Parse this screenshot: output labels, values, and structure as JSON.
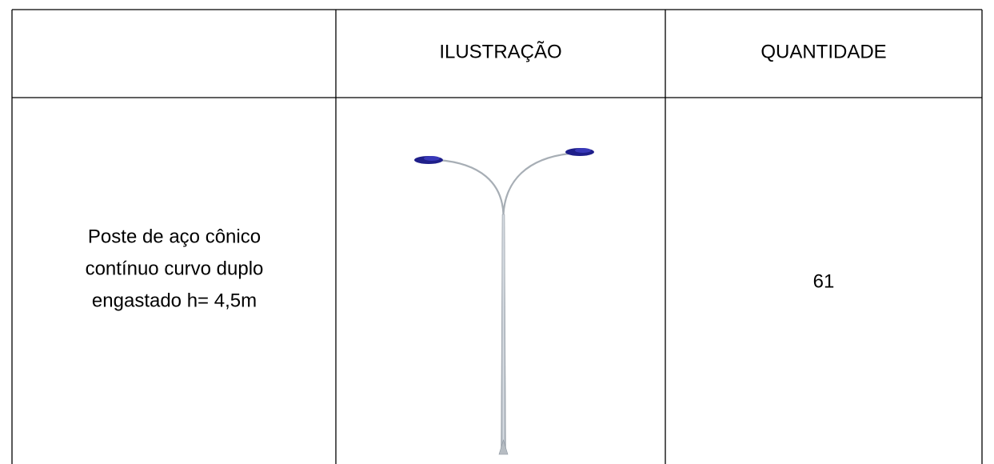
{
  "table": {
    "header": [
      "ILUSTRAÇÃO",
      "QUANTIDADE"
    ],
    "rows": [
      {
        "description": [
          "Poste de aço cônico",
          "contínuo curvo duplo",
          "engastado h= 4,5m"
        ],
        "quantity": 61
      }
    ]
  }
}
